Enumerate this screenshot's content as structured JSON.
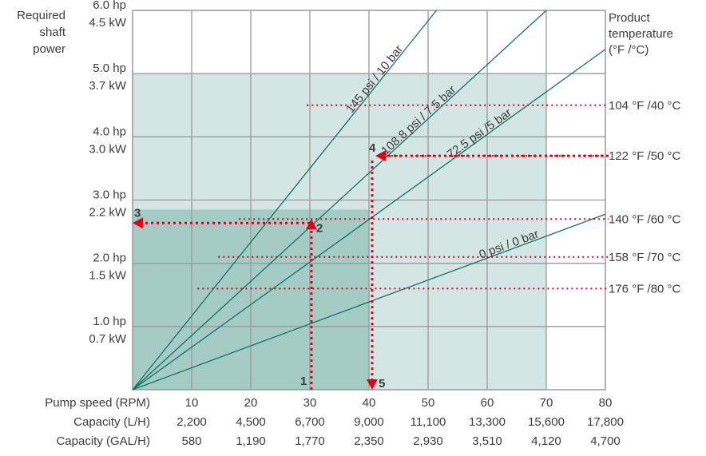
{
  "chart_data": {
    "type": "line",
    "title": "",
    "y_axis": {
      "label_lines": [
        "Required",
        "shaft",
        "power"
      ],
      "ticks": [
        {
          "hp": 1.0,
          "hp_label": "1.0 hp",
          "kw_label": "0.7 kW"
        },
        {
          "hp": 2.0,
          "hp_label": "2.0 hp",
          "kw_label": "1.5 kW"
        },
        {
          "hp": 3.0,
          "hp_label": "3.0 hp",
          "kw_label": "2.2 kW"
        },
        {
          "hp": 4.0,
          "hp_label": "4.0 hp",
          "kw_label": "3.0 kW"
        },
        {
          "hp": 5.0,
          "hp_label": "5.0 hp",
          "kw_label": "3.7 kW"
        },
        {
          "hp": 6.0,
          "hp_label": "6.0 hp",
          "kw_label": "4.5 kW"
        }
      ],
      "ylim": [
        0,
        6
      ]
    },
    "x_axis": {
      "xlim": [
        0,
        80
      ],
      "rows": [
        {
          "label": "Pump speed (RPM)",
          "values": [
            "10",
            "20",
            "30",
            "40",
            "50",
            "60",
            "70",
            "80"
          ]
        },
        {
          "label": "Capacity (L/H)",
          "values": [
            "2,200",
            "4,500",
            "6,700",
            "9,000",
            "11,100",
            "13,300",
            "15,600",
            "17,800"
          ]
        },
        {
          "label": "Capacity (GAL/H)",
          "values": [
            "580",
            "1,190",
            "1,770",
            "2,350",
            "2,930",
            "3,510",
            "4,120",
            "4,700"
          ]
        }
      ]
    },
    "right_axis": {
      "label_lines": [
        "Product",
        "temperature",
        "(°F /°C)"
      ],
      "temperatures": [
        {
          "label": "104 °F /40 °C",
          "hp": 4.5
        },
        {
          "label": "122 °F /50 °C",
          "hp": 3.7
        },
        {
          "label": "140 °F /60 °C",
          "hp": 2.7
        },
        {
          "label": "158 °F /70 °C",
          "hp": 2.1
        },
        {
          "label": "176 °F /80 °C",
          "hp": 1.6
        }
      ]
    },
    "series": [
      {
        "name": "145 psi / 10 bar",
        "hp_per_rpm": 0.1167
      },
      {
        "name": "108.8 psi / 7.5 bar",
        "hp_per_rpm": 0.0857
      },
      {
        "name": "72.5 psi /5 bar",
        "hp_per_rpm": 0.0673
      },
      {
        "name": "0 psi / 0 bar",
        "hp_per_rpm": 0.0347
      }
    ],
    "regions": {
      "light_hp_max": 5.0,
      "light_rpm_max": 70,
      "dark_hp_max": 2.85,
      "dark_rpm_max": 40
    },
    "example_steps": [
      {
        "label": "1",
        "rpm": 30,
        "hp": 0
      },
      {
        "label": "2",
        "rpm": 30,
        "hp": 2.7
      },
      {
        "label": "3",
        "rpm": 0,
        "hp": 2.7
      },
      {
        "label": "4",
        "rpm": 40,
        "hp": 3.7
      },
      {
        "label": "5",
        "rpm": 40,
        "hp": 0
      }
    ],
    "colors": {
      "light_region": "#d3e6e3",
      "dark_region": "#a5cbc5",
      "grid": "#9a9a9a",
      "curve": "#0e7566",
      "guide": "#e0001a",
      "text": "#3c3c3c"
    }
  }
}
